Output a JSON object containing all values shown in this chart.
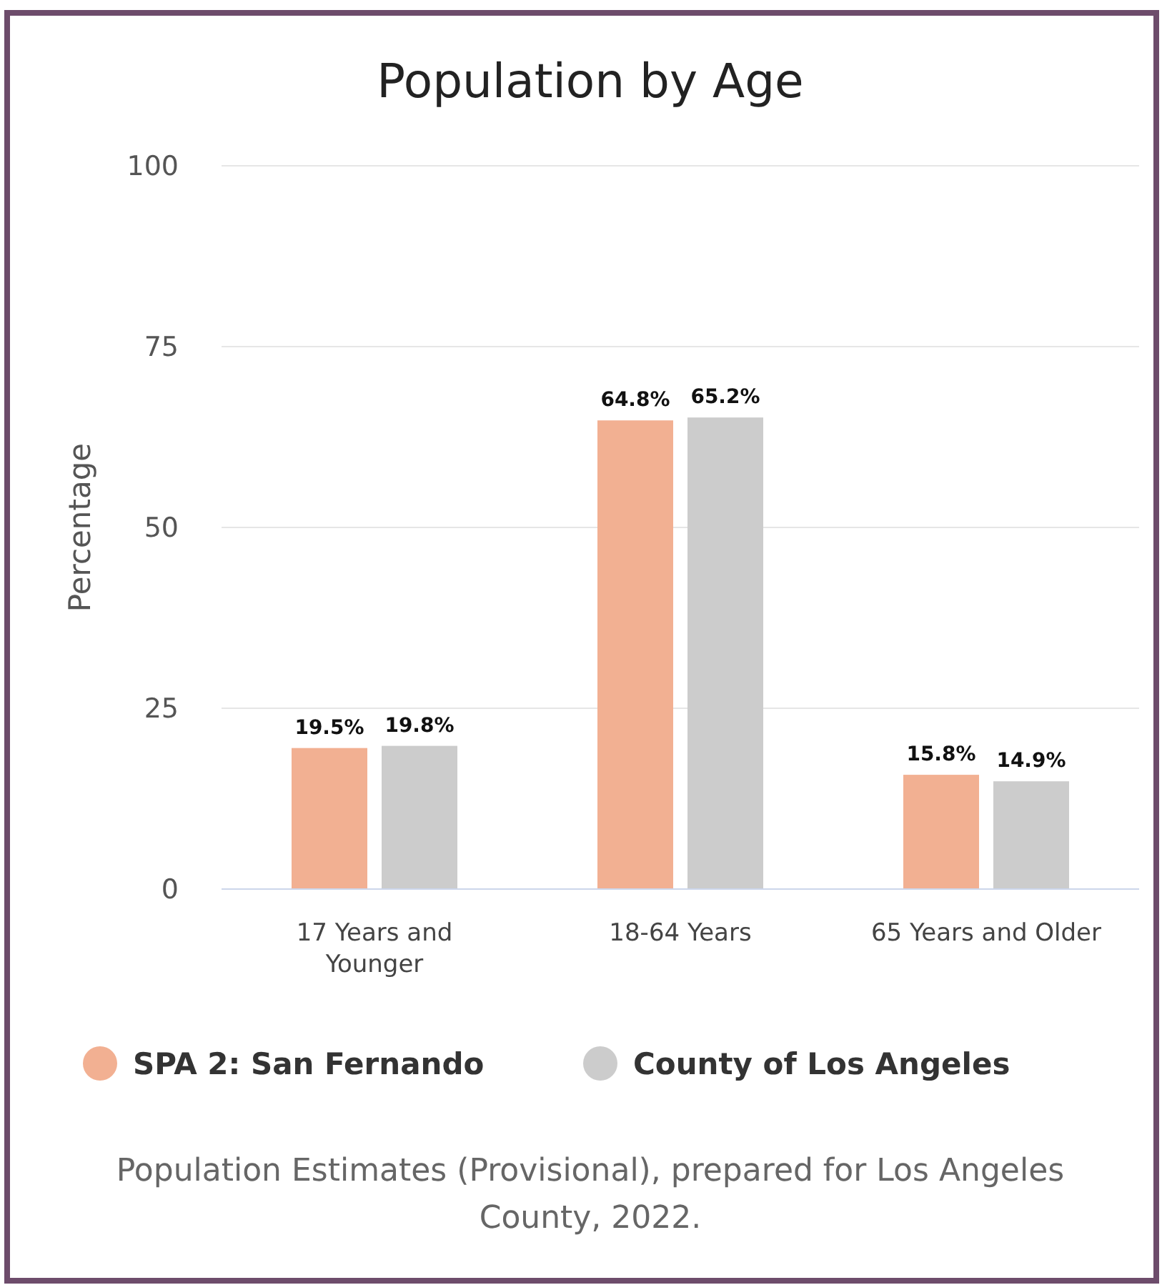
{
  "chart_data": {
    "type": "bar",
    "title": "Population by Age",
    "ylabel": "Percentage",
    "categories": [
      "17 Years and Younger",
      "18-64 Years",
      "65 Years and Older"
    ],
    "series": [
      {
        "name": "SPA 2: San Fernando",
        "color": "#f2b092",
        "values": [
          19.5,
          64.8,
          15.8
        ],
        "value_labels": [
          "19.5%",
          "64.8%",
          "15.8%"
        ]
      },
      {
        "name": "County of Los Angeles",
        "color": "#cccccc",
        "values": [
          19.8,
          65.2,
          14.9
        ],
        "value_labels": [
          "19.8%",
          "65.2%",
          "14.9%"
        ]
      }
    ],
    "ylim": [
      0,
      100
    ],
    "yticks": [
      0,
      25,
      50,
      75,
      100
    ],
    "grid": "y",
    "legend": "bottom",
    "annotations": [
      "Population Estimates (Provisional), prepared for Los Angeles County, 2022."
    ]
  }
}
